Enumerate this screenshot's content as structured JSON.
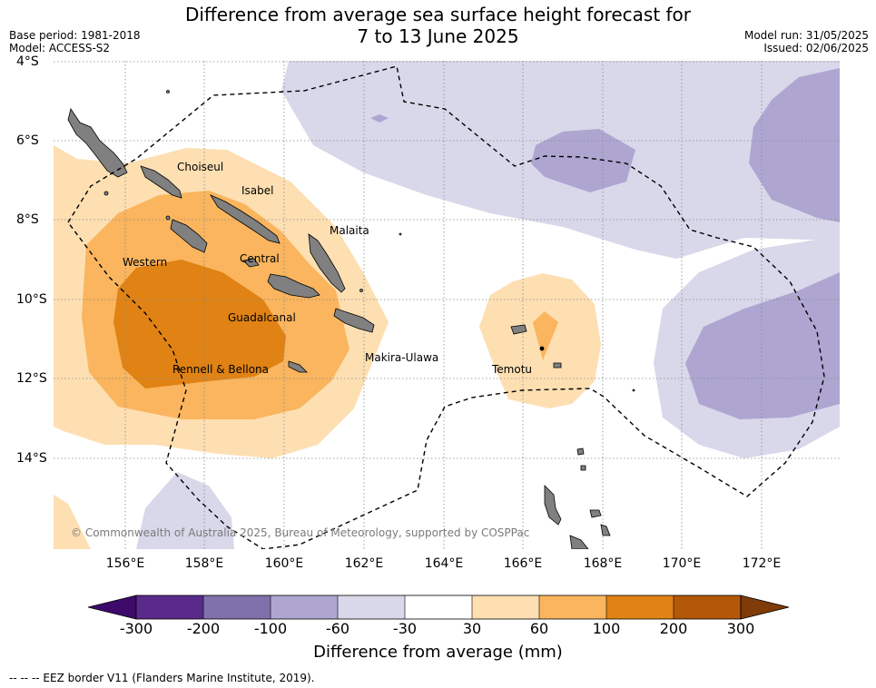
{
  "header": {
    "title_line1": "Difference from average sea surface height forecast for",
    "title_line2": "7 to 13 June 2025",
    "base_period": "Base period: 1981-2018",
    "model": "Model: ACCESS-S2",
    "model_run": "Model run: 31/05/2025",
    "issued": "Issued: 02/06/2025"
  },
  "map": {
    "lat_labels": [
      "4°S",
      "6°S",
      "8°S",
      "10°S",
      "12°S",
      "14°S"
    ],
    "lon_labels": [
      "156°E",
      "158°E",
      "160°E",
      "162°E",
      "164°E",
      "166°E",
      "168°E",
      "170°E",
      "172°E"
    ],
    "regions": [
      "Choiseul",
      "Isabel",
      "Malaita",
      "Western",
      "Central",
      "Guadalcanal",
      "Makira-Ulawa",
      "Rennell & Bellona",
      "Temotu"
    ],
    "credit": "© Commonwealth of Australia 2025, Bureau of Meteorology, supported by COSPPac",
    "colors": {
      "neg300": "#3d0a6b",
      "neg200": "#5a2a8a",
      "neg100": "#8070ab",
      "neg60": "#aea6d1",
      "neg30": "#d8d8ea",
      "zero": "#ffffff",
      "pos30": "#fddfb2",
      "pos60": "#fab55e",
      "pos100": "#e08214",
      "pos200": "#b35806",
      "pos300": "#7f3b08",
      "land": "#808080"
    }
  },
  "legend": {
    "ticks": [
      "-300",
      "-200",
      "-100",
      "-60",
      "-30",
      "30",
      "60",
      "100",
      "200",
      "300"
    ],
    "label": "Difference from average (mm)",
    "eez_note": "-- -- -- EEZ border V11 (Flanders Marine Institute, 2019)."
  }
}
